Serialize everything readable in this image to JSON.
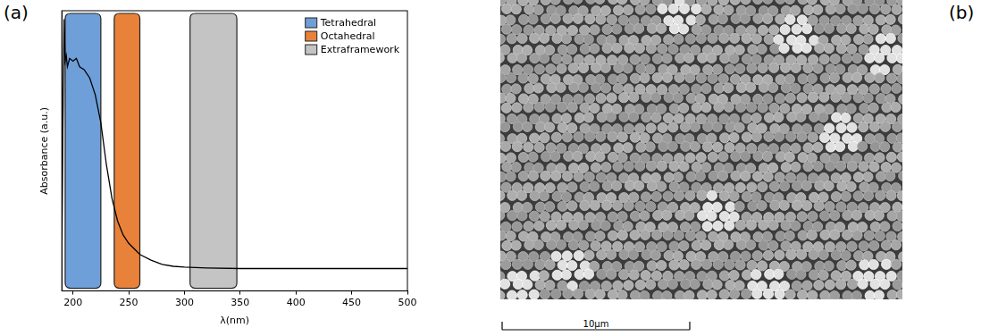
{
  "chart_data": {
    "type": "line",
    "panel_label": "(a)",
    "x_label": "λ(nm)",
    "y_label": "Absorbance (a.u.)",
    "x": [
      190,
      191,
      192,
      193,
      194,
      195,
      197,
      200,
      203,
      206,
      210,
      215,
      220,
      225,
      230,
      235,
      240,
      245,
      250,
      260,
      270,
      280,
      290,
      300,
      320,
      350,
      400,
      450,
      500
    ],
    "values": [
      0.1,
      0.6,
      0.97,
      0.82,
      0.84,
      0.8,
      0.83,
      0.82,
      0.83,
      0.8,
      0.79,
      0.76,
      0.7,
      0.6,
      0.45,
      0.33,
      0.25,
      0.2,
      0.17,
      0.13,
      0.11,
      0.095,
      0.088,
      0.085,
      0.082,
      0.08,
      0.08,
      0.08,
      0.08
    ],
    "color": "#000000",
    "xlim": [
      190,
      500
    ],
    "xticks": [
      200,
      250,
      300,
      350,
      400,
      450,
      500
    ],
    "ylim": [
      0,
      1
    ],
    "tick_labels": "x",
    "grid": false,
    "legend": "upper right",
    "bands": [
      {
        "name": "Tetrahedral",
        "color": "#6f9fd8",
        "range": [
          193,
          225
        ]
      },
      {
        "name": "Octahedral",
        "color": "#e8823a",
        "range": [
          237,
          260
        ]
      },
      {
        "name": "Extraframework",
        "color": "#c4c4c4",
        "range": [
          305,
          347
        ]
      }
    ]
  },
  "image_panel": {
    "panel_label": "(b)",
    "scale_bar": "10μm"
  }
}
